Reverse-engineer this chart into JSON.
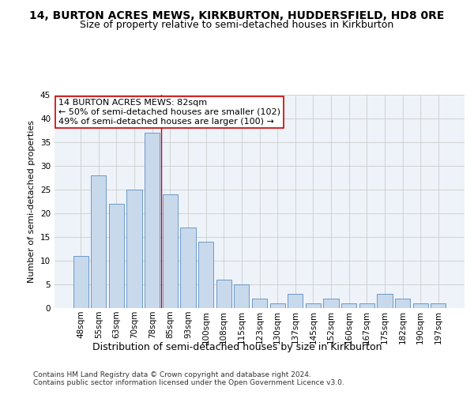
{
  "title": "14, BURTON ACRES MEWS, KIRKBURTON, HUDDERSFIELD, HD8 0RE",
  "subtitle": "Size of property relative to semi-detached houses in Kirkburton",
  "xlabel": "Distribution of semi-detached houses by size in Kirkburton",
  "ylabel": "Number of semi-detached properties",
  "categories": [
    "48sqm",
    "55sqm",
    "63sqm",
    "70sqm",
    "78sqm",
    "85sqm",
    "93sqm",
    "100sqm",
    "108sqm",
    "115sqm",
    "123sqm",
    "130sqm",
    "137sqm",
    "145sqm",
    "152sqm",
    "160sqm",
    "167sqm",
    "175sqm",
    "182sqm",
    "190sqm",
    "197sqm"
  ],
  "values": [
    11,
    28,
    22,
    25,
    37,
    24,
    17,
    14,
    6,
    5,
    2,
    1,
    3,
    1,
    2,
    1,
    1,
    3,
    2,
    1,
    1
  ],
  "bar_color": "#c9d9ec",
  "bar_edge_color": "#5b8dc0",
  "vline_index": 4.5,
  "vline_color": "#cc0000",
  "annotation_text": "14 BURTON ACRES MEWS: 82sqm\n← 50% of semi-detached houses are smaller (102)\n49% of semi-detached houses are larger (100) →",
  "annotation_box_color": "#ffffff",
  "annotation_box_edge": "#cc0000",
  "ylim": [
    0,
    45
  ],
  "yticks": [
    0,
    5,
    10,
    15,
    20,
    25,
    30,
    35,
    40,
    45
  ],
  "grid_color": "#cccccc",
  "background_color": "#eef3f9",
  "footer": "Contains HM Land Registry data © Crown copyright and database right 2024.\nContains public sector information licensed under the Open Government Licence v3.0.",
  "title_fontsize": 10,
  "subtitle_fontsize": 9,
  "xlabel_fontsize": 9,
  "ylabel_fontsize": 8,
  "tick_fontsize": 7.5,
  "annot_fontsize": 8,
  "footer_fontsize": 6.5
}
